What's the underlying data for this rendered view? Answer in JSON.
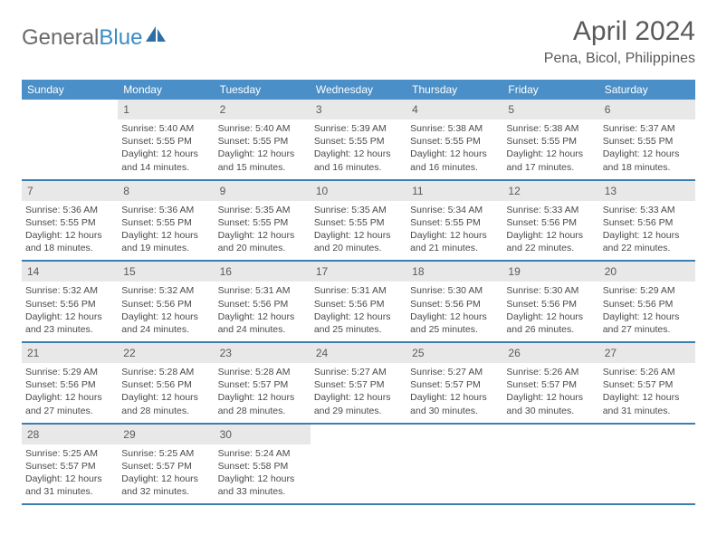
{
  "logo": {
    "text1": "General",
    "text2": "Blue"
  },
  "title": "April 2024",
  "location": "Pena, Bicol, Philippines",
  "weekdays": [
    "Sunday",
    "Monday",
    "Tuesday",
    "Wednesday",
    "Thursday",
    "Friday",
    "Saturday"
  ],
  "colors": {
    "header_bar": "#4a8fc7",
    "row_border": "#3b7fb0",
    "daynum_bg": "#e8e8e8",
    "text": "#4a4a4a",
    "logo_gray": "#6a6a6a",
    "logo_blue": "#3b8bc4"
  },
  "weeks": [
    [
      {
        "n": "",
        "empty": true
      },
      {
        "n": "1",
        "sr": "5:40 AM",
        "ss": "5:55 PM",
        "dh": "12",
        "dm": "14"
      },
      {
        "n": "2",
        "sr": "5:40 AM",
        "ss": "5:55 PM",
        "dh": "12",
        "dm": "15"
      },
      {
        "n": "3",
        "sr": "5:39 AM",
        "ss": "5:55 PM",
        "dh": "12",
        "dm": "16"
      },
      {
        "n": "4",
        "sr": "5:38 AM",
        "ss": "5:55 PM",
        "dh": "12",
        "dm": "16"
      },
      {
        "n": "5",
        "sr": "5:38 AM",
        "ss": "5:55 PM",
        "dh": "12",
        "dm": "17"
      },
      {
        "n": "6",
        "sr": "5:37 AM",
        "ss": "5:55 PM",
        "dh": "12",
        "dm": "18"
      }
    ],
    [
      {
        "n": "7",
        "sr": "5:36 AM",
        "ss": "5:55 PM",
        "dh": "12",
        "dm": "18"
      },
      {
        "n": "8",
        "sr": "5:36 AM",
        "ss": "5:55 PM",
        "dh": "12",
        "dm": "19"
      },
      {
        "n": "9",
        "sr": "5:35 AM",
        "ss": "5:55 PM",
        "dh": "12",
        "dm": "20"
      },
      {
        "n": "10",
        "sr": "5:35 AM",
        "ss": "5:55 PM",
        "dh": "12",
        "dm": "20"
      },
      {
        "n": "11",
        "sr": "5:34 AM",
        "ss": "5:55 PM",
        "dh": "12",
        "dm": "21"
      },
      {
        "n": "12",
        "sr": "5:33 AM",
        "ss": "5:56 PM",
        "dh": "12",
        "dm": "22"
      },
      {
        "n": "13",
        "sr": "5:33 AM",
        "ss": "5:56 PM",
        "dh": "12",
        "dm": "22"
      }
    ],
    [
      {
        "n": "14",
        "sr": "5:32 AM",
        "ss": "5:56 PM",
        "dh": "12",
        "dm": "23"
      },
      {
        "n": "15",
        "sr": "5:32 AM",
        "ss": "5:56 PM",
        "dh": "12",
        "dm": "24"
      },
      {
        "n": "16",
        "sr": "5:31 AM",
        "ss": "5:56 PM",
        "dh": "12",
        "dm": "24"
      },
      {
        "n": "17",
        "sr": "5:31 AM",
        "ss": "5:56 PM",
        "dh": "12",
        "dm": "25"
      },
      {
        "n": "18",
        "sr": "5:30 AM",
        "ss": "5:56 PM",
        "dh": "12",
        "dm": "25"
      },
      {
        "n": "19",
        "sr": "5:30 AM",
        "ss": "5:56 PM",
        "dh": "12",
        "dm": "26"
      },
      {
        "n": "20",
        "sr": "5:29 AM",
        "ss": "5:56 PM",
        "dh": "12",
        "dm": "27"
      }
    ],
    [
      {
        "n": "21",
        "sr": "5:29 AM",
        "ss": "5:56 PM",
        "dh": "12",
        "dm": "27"
      },
      {
        "n": "22",
        "sr": "5:28 AM",
        "ss": "5:56 PM",
        "dh": "12",
        "dm": "28"
      },
      {
        "n": "23",
        "sr": "5:28 AM",
        "ss": "5:57 PM",
        "dh": "12",
        "dm": "28"
      },
      {
        "n": "24",
        "sr": "5:27 AM",
        "ss": "5:57 PM",
        "dh": "12",
        "dm": "29"
      },
      {
        "n": "25",
        "sr": "5:27 AM",
        "ss": "5:57 PM",
        "dh": "12",
        "dm": "30"
      },
      {
        "n": "26",
        "sr": "5:26 AM",
        "ss": "5:57 PM",
        "dh": "12",
        "dm": "30"
      },
      {
        "n": "27",
        "sr": "5:26 AM",
        "ss": "5:57 PM",
        "dh": "12",
        "dm": "31"
      }
    ],
    [
      {
        "n": "28",
        "sr": "5:25 AM",
        "ss": "5:57 PM",
        "dh": "12",
        "dm": "31"
      },
      {
        "n": "29",
        "sr": "5:25 AM",
        "ss": "5:57 PM",
        "dh": "12",
        "dm": "32"
      },
      {
        "n": "30",
        "sr": "5:24 AM",
        "ss": "5:58 PM",
        "dh": "12",
        "dm": "33"
      },
      {
        "n": "",
        "empty": true
      },
      {
        "n": "",
        "empty": true
      },
      {
        "n": "",
        "empty": true
      },
      {
        "n": "",
        "empty": true
      }
    ]
  ],
  "labels": {
    "sunrise": "Sunrise:",
    "sunset": "Sunset:",
    "daylight_prefix": "Daylight:",
    "hours_word": "hours",
    "and_word": "and",
    "minutes_word": "minutes."
  }
}
